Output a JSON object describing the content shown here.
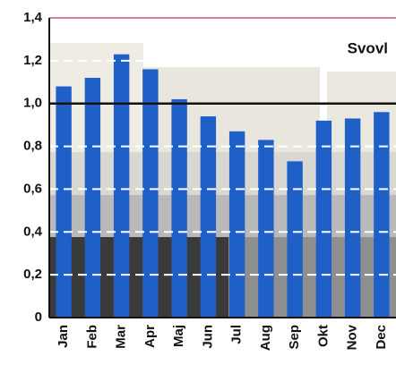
{
  "chart_data": {
    "type": "bar",
    "title": "Svovl",
    "categories": [
      "Jan",
      "Feb",
      "Mar",
      "Apr",
      "Maj",
      "Jun",
      "Jul",
      "Aug",
      "Sep",
      "Okt",
      "Nov",
      "Dec"
    ],
    "values": [
      1.08,
      1.12,
      1.23,
      1.16,
      1.02,
      0.94,
      0.87,
      0.83,
      0.73,
      0.92,
      0.93,
      0.96
    ],
    "color": "#1f5fc8",
    "ylim": [
      0,
      1.4
    ],
    "yticks": [
      0,
      {
        "value": 0.2,
        "label": "0,2"
      },
      {
        "value": 0.4,
        "label": "0,4"
      },
      {
        "value": 0.6,
        "label": "0,6"
      },
      {
        "value": 0.8,
        "label": "0,8"
      },
      {
        "value": 1.0,
        "label": "1,0"
      },
      {
        "value": 1.2,
        "label": "1,2"
      },
      {
        "value": 1.4,
        "label": "1,4"
      }
    ],
    "reference_line": 1,
    "grid": true
  }
}
